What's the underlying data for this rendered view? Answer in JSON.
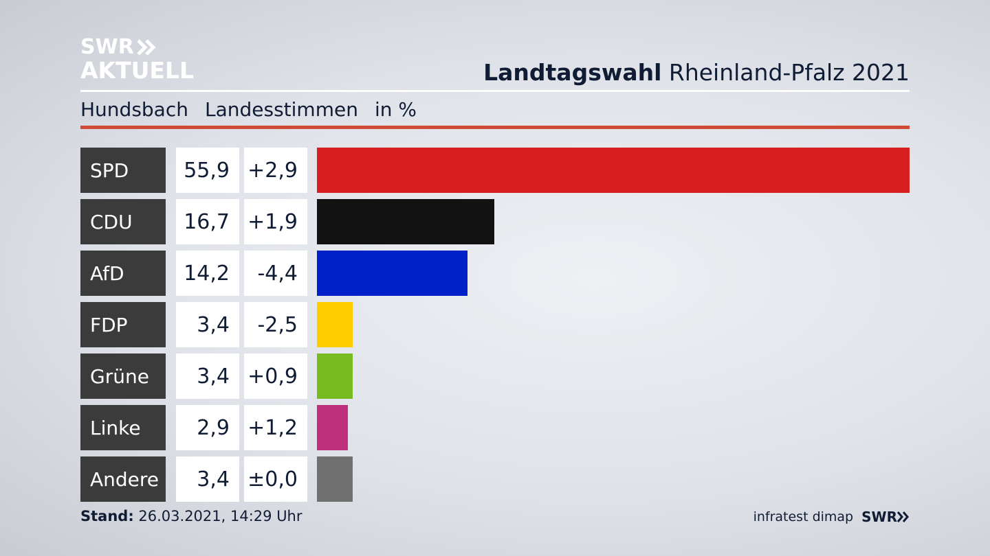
{
  "logo": {
    "line1": "SWR",
    "line2": "AKTUELL",
    "icon": "double-chevron-right-icon"
  },
  "header": {
    "title_bold": "Landtagswahl",
    "title_rest": "Rheinland-Pfalz 2021"
  },
  "subheader": {
    "place": "Hundsbach",
    "type": "Landesstimmen",
    "unit": "in %"
  },
  "chart_data": {
    "type": "bar",
    "orientation": "horizontal",
    "categories": [
      "SPD",
      "CDU",
      "AfD",
      "FDP",
      "Grüne",
      "Linke",
      "Andere"
    ],
    "values": [
      55.9,
      16.7,
      14.2,
      3.4,
      3.4,
      2.9,
      3.4
    ],
    "value_labels": [
      "55,9",
      "16,7",
      "14,2",
      "3,4",
      "3,4",
      "2,9",
      "3,4"
    ],
    "diff_labels": [
      "+2,9",
      "+1,9",
      "-4,4",
      "-2,5",
      "+0,9",
      "+1,2",
      "±0,0"
    ],
    "colors": [
      "#d71f1f",
      "#121212",
      "#0020c8",
      "#ffcc00",
      "#77bb1e",
      "#be2f7c",
      "#707070"
    ],
    "xlim": [
      0,
      55.9
    ],
    "grid": false
  },
  "footer": {
    "stand_label": "Stand:",
    "stand_value": "26.03.2021, 14:29 Uhr",
    "source": "infratest dimap",
    "brand": "SWR"
  }
}
